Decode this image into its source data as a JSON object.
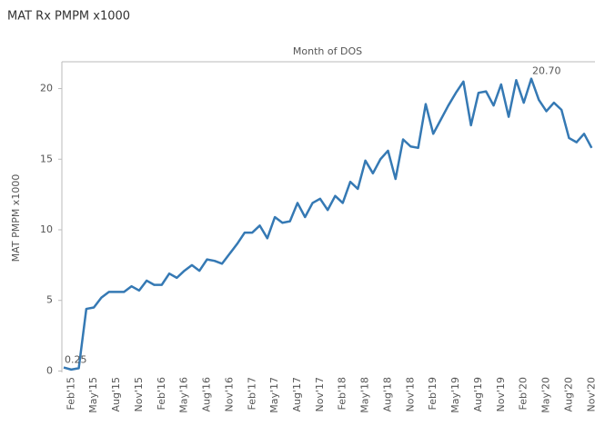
{
  "chart_data": {
    "type": "line",
    "title": "MAT Rx PMPM x1000",
    "x_label": "Month of DOS",
    "y_label": "MAT PMPM x1000",
    "categories": [
      null,
      "Feb'15",
      null,
      null,
      "May'15",
      null,
      null,
      "Aug'15",
      null,
      null,
      "Nov'15",
      null,
      null,
      "Feb'16",
      null,
      null,
      "May'16",
      null,
      null,
      "Aug'16",
      null,
      null,
      "Nov'16",
      null,
      null,
      "Feb'17",
      null,
      null,
      "May'17",
      null,
      null,
      "Aug'17",
      null,
      null,
      "Nov'17",
      null,
      null,
      "Feb'18",
      null,
      null,
      "May'18",
      null,
      null,
      "Aug'18",
      null,
      null,
      "Nov'18",
      null,
      null,
      "Feb'19",
      null,
      null,
      "May'19",
      null,
      null,
      "Aug'19",
      null,
      null,
      "Nov'19",
      null,
      null,
      "Feb'20",
      null,
      null,
      "May'20",
      null,
      null,
      "Aug'20",
      null,
      null,
      "Nov'20"
    ],
    "values": [
      0.25,
      0.1,
      0.2,
      4.4,
      4.5,
      5.2,
      5.6,
      5.6,
      5.6,
      6.0,
      5.7,
      6.4,
      6.1,
      6.1,
      6.9,
      6.6,
      7.1,
      7.5,
      7.1,
      7.9,
      7.8,
      7.6,
      8.3,
      9.0,
      9.8,
      9.8,
      10.3,
      9.4,
      10.9,
      10.5,
      10.6,
      11.9,
      10.9,
      11.9,
      12.2,
      11.4,
      12.4,
      11.9,
      13.4,
      12.9,
      14.9,
      14.0,
      15.0,
      15.6,
      13.6,
      16.4,
      15.9,
      15.8,
      18.9,
      16.8,
      17.8,
      18.8,
      19.7,
      20.5,
      17.4,
      19.7,
      19.8,
      18.8,
      20.3,
      18.0,
      20.6,
      19.0,
      20.7,
      19.2,
      18.4,
      19.0,
      18.5,
      16.5,
      16.2,
      16.8,
      15.8
    ],
    "value_labels": [
      "0.25",
      null,
      null,
      null,
      null,
      null,
      null,
      null,
      null,
      null,
      null,
      null,
      null,
      null,
      null,
      null,
      null,
      null,
      null,
      null,
      null,
      null,
      null,
      null,
      null,
      null,
      null,
      null,
      null,
      null,
      null,
      null,
      null,
      null,
      null,
      null,
      null,
      null,
      null,
      null,
      null,
      null,
      null,
      null,
      null,
      null,
      null,
      null,
      null,
      null,
      null,
      null,
      null,
      null,
      null,
      null,
      null,
      null,
      null,
      null,
      null,
      null,
      "20.70",
      null,
      null,
      null,
      null,
      null,
      null,
      null,
      null
    ],
    "color": "#3579b4",
    "ylim": [
      -0.1,
      21.9
    ],
    "yticks": [
      0,
      5,
      10,
      15,
      20
    ],
    "grid": false
  }
}
